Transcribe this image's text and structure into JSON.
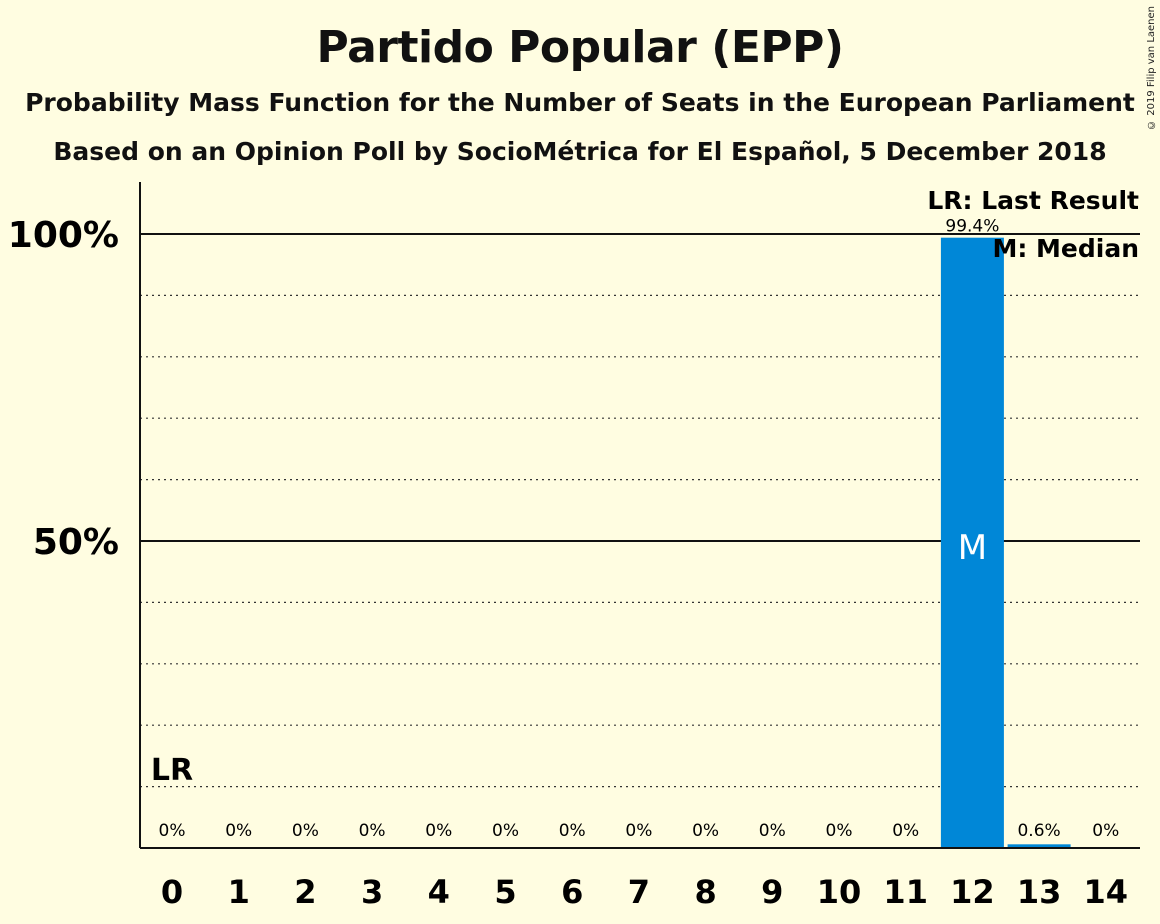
{
  "title": "Partido Popular (EPP)",
  "subtitle1": "Probability Mass Function for the Number of Seats in the European Parliament",
  "subtitle2": "Based on an Opinion Poll by SocioMétrica for El Español, 5 December 2018",
  "copyright": "© 2019 Filip van Laenen",
  "legend": {
    "lr": "LR: Last Result",
    "m": "M: Median"
  },
  "colors": {
    "bar": "#0087d7",
    "background": "#fffde1"
  },
  "chart_data": {
    "type": "bar",
    "categories": [
      "0",
      "1",
      "2",
      "3",
      "4",
      "5",
      "6",
      "7",
      "8",
      "9",
      "10",
      "11",
      "12",
      "13",
      "14"
    ],
    "values": [
      0,
      0,
      0,
      0,
      0,
      0,
      0,
      0,
      0,
      0,
      0,
      0,
      99.4,
      0.6,
      0
    ],
    "value_labels": [
      "0%",
      "0%",
      "0%",
      "0%",
      "0%",
      "0%",
      "0%",
      "0%",
      "0%",
      "0%",
      "0%",
      "0%",
      "99.4%",
      "0.6%",
      "0%"
    ],
    "ylim": [
      0,
      100
    ],
    "yticks": [
      {
        "value": 50,
        "label": "50%"
      },
      {
        "value": 100,
        "label": "100%"
      }
    ],
    "minor_gridlines": [
      10,
      20,
      30,
      40,
      60,
      70,
      80,
      90
    ],
    "last_result": {
      "seat": "0",
      "label": "LR"
    },
    "median": {
      "seat": "12",
      "label": "M"
    },
    "grid": true,
    "legend_position": "top-right"
  }
}
